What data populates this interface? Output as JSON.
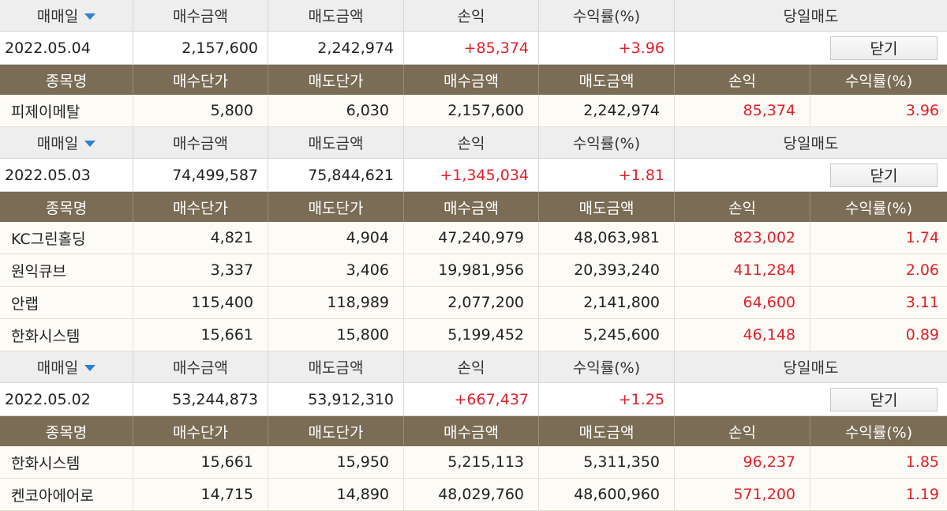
{
  "daily_headers": {
    "date": "매매일",
    "buy_amount": "매수금액",
    "sell_amount": "매도금액",
    "profit": "손익",
    "return_rate": "수익률(%)",
    "same_day_sell": "당일매도"
  },
  "stock_headers": {
    "name": "종목명",
    "buy_price": "매수단가",
    "sell_price": "매도단가",
    "buy_amount": "매수금액",
    "sell_amount": "매도금액",
    "profit": "손익",
    "return_rate": "수익률(%)"
  },
  "sort_icon": "chevron-down-icon",
  "colors": {
    "header_bg": "#7a6c55",
    "profit_red": "#e0202a",
    "sort_blue": "#2f7fd0"
  },
  "days": [
    {
      "date": "2022.05.04",
      "buy_amount": "2,157,600",
      "sell_amount": "2,242,974",
      "profit": "+85,374",
      "return_rate": "+3.96",
      "close_label": "닫기",
      "stocks": [
        {
          "name": "피제이메탈",
          "buy_price": "5,800",
          "sell_price": "6,030",
          "buy_amount": "2,157,600",
          "sell_amount": "2,242,974",
          "profit": "85,374",
          "return_rate": "3.96"
        }
      ]
    },
    {
      "date": "2022.05.03",
      "buy_amount": "74,499,587",
      "sell_amount": "75,844,621",
      "profit": "+1,345,034",
      "return_rate": "+1.81",
      "close_label": "닫기",
      "stocks": [
        {
          "name": "KC그린홀딩",
          "buy_price": "4,821",
          "sell_price": "4,904",
          "buy_amount": "47,240,979",
          "sell_amount": "48,063,981",
          "profit": "823,002",
          "return_rate": "1.74"
        },
        {
          "name": "원익큐브",
          "buy_price": "3,337",
          "sell_price": "3,406",
          "buy_amount": "19,981,956",
          "sell_amount": "20,393,240",
          "profit": "411,284",
          "return_rate": "2.06"
        },
        {
          "name": "안랩",
          "buy_price": "115,400",
          "sell_price": "118,989",
          "buy_amount": "2,077,200",
          "sell_amount": "2,141,800",
          "profit": "64,600",
          "return_rate": "3.11"
        },
        {
          "name": "한화시스템",
          "buy_price": "15,661",
          "sell_price": "15,800",
          "buy_amount": "5,199,452",
          "sell_amount": "5,245,600",
          "profit": "46,148",
          "return_rate": "0.89"
        }
      ]
    },
    {
      "date": "2022.05.02",
      "buy_amount": "53,244,873",
      "sell_amount": "53,912,310",
      "profit": "+667,437",
      "return_rate": "+1.25",
      "close_label": "닫기",
      "stocks": [
        {
          "name": "한화시스템",
          "buy_price": "15,661",
          "sell_price": "15,950",
          "buy_amount": "5,215,113",
          "sell_amount": "5,311,350",
          "profit": "96,237",
          "return_rate": "1.85"
        },
        {
          "name": "켄코아에어로",
          "buy_price": "14,715",
          "sell_price": "14,890",
          "buy_amount": "48,029,760",
          "sell_amount": "48,600,960",
          "profit": "571,200",
          "return_rate": "1.19"
        }
      ]
    }
  ]
}
